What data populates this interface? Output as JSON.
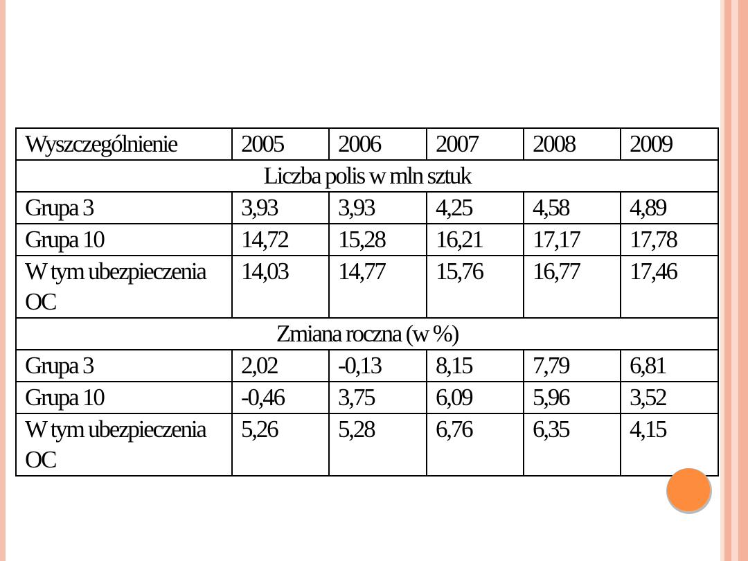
{
  "table": {
    "header": [
      "Wyszczególnienie",
      "2005",
      "2006",
      "2007",
      "2008",
      "2009"
    ],
    "sections": [
      {
        "title": "Liczba polis w mln sztuk",
        "rows": [
          [
            "Grupa 3",
            "3,93",
            "3,93",
            "4,25",
            "4,58",
            "4,89"
          ],
          [
            "Grupa 10",
            "14,72",
            "15,28",
            "16,21",
            "17,17",
            "17,78"
          ],
          [
            "W tym ubezpieczenia OC",
            "14,03",
            "14,77",
            "15,76",
            "16,77",
            "17,46"
          ]
        ]
      },
      {
        "title": "Zmiana roczna (w %)",
        "rows": [
          [
            "Grupa 3",
            "2,02",
            "-0,13",
            "8,15",
            "7,79",
            "6,81"
          ],
          [
            "Grupa 10",
            "-0,46",
            "3,75",
            "6,09",
            "5,96",
            "3,52"
          ],
          [
            "W tym ubezpieczenia OC",
            "5,26",
            "5,28",
            "6,76",
            "6,35",
            "4,15"
          ]
        ]
      }
    ]
  }
}
